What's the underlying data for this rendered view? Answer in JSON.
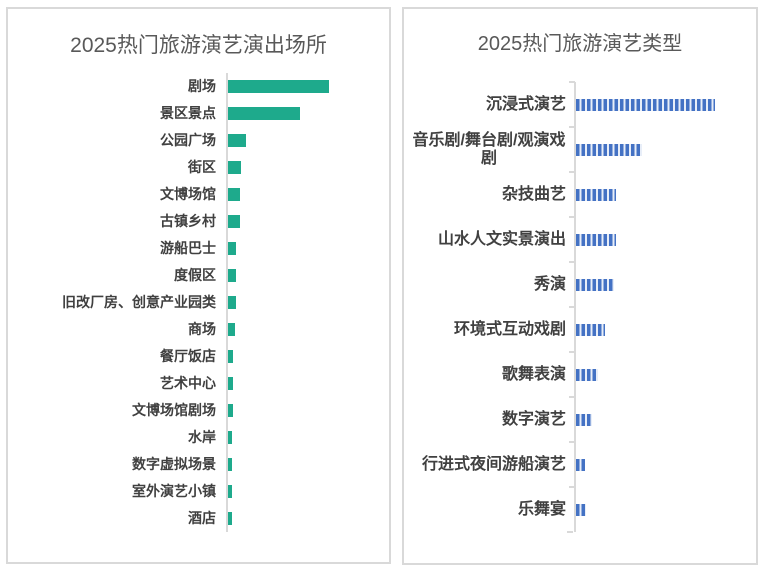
{
  "page": {
    "background": "#ffffff",
    "panel_border_color": "#d9d9d9",
    "title_color": "#595959",
    "label_color": "#404040"
  },
  "chart_data": [
    {
      "type": "bar",
      "orientation": "horizontal",
      "title": "2025热门旅游演艺演出场所",
      "categories": [
        "剧场",
        "景区景点",
        "公园广场",
        "街区",
        "文博场馆",
        "古镇乡村",
        "游船巴士",
        "度假区",
        "旧改厂房、创意产业园类",
        "商场",
        "餐厅饭店",
        "艺术中心",
        "文博场馆剧场",
        "水岸",
        "数字虚拟场景",
        "室外演艺小镇",
        "酒店"
      ],
      "values": [
        101,
        72,
        17.5,
        12.5,
        12,
        11.5,
        8,
        7.7,
        7.5,
        7.2,
        5.3,
        5.1,
        4.9,
        4.4,
        4.2,
        4.2,
        4.1
      ],
      "units": "relative length (chart shows no numeric axis or data labels)",
      "bar_color": "#1eaa8c",
      "bar_style": "solid",
      "axis_color": "#d9d9d9",
      "value_axis_labels": false,
      "gridlines": false,
      "legend": "none"
    },
    {
      "type": "bar",
      "orientation": "horizontal",
      "title": "2025热门旅游演艺类型",
      "categories": [
        "沉浸式演艺",
        "音乐剧/舞台剧/观演戏剧",
        "杂技曲艺",
        "山水人文实景演出",
        "秀演",
        "环境式互动戏剧",
        "歌舞表演",
        "数字演艺",
        "行进式夜间游船演艺",
        "乐舞宴"
      ],
      "values": [
        139,
        66,
        40,
        40,
        38,
        29,
        22,
        16,
        9,
        10
      ],
      "units": "relative length (chart shows no numeric axis or data labels)",
      "bar_color": "#4472c4",
      "bar_style": "dashed-vertical-stripes",
      "axis_color": "#d9d9d9",
      "axis_ticks": true,
      "value_axis_labels": false,
      "gridlines": false,
      "legend": "none"
    }
  ]
}
